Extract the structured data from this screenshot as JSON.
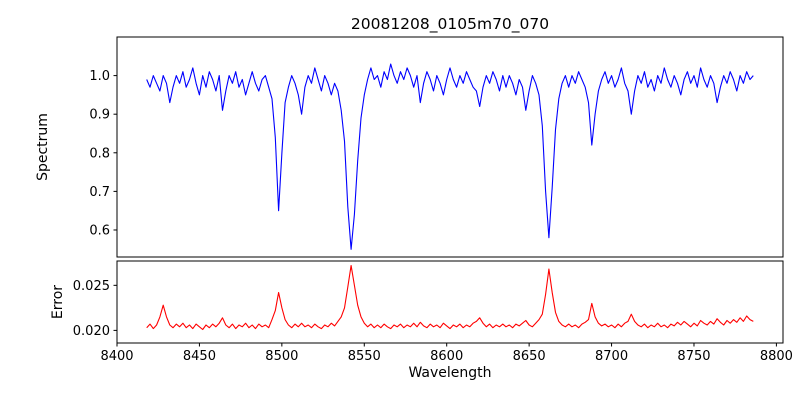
{
  "figure": {
    "title": "20081208_0105m70_070",
    "xlabel": "Wavelength",
    "ylabel_top": "Spectrum",
    "ylabel_bottom": "Error",
    "background_color": "#ffffff",
    "spectrum_color": "#0000ff",
    "error_color": "#ff0000",
    "frame_color": "#000000"
  },
  "chart_data": [
    {
      "type": "line",
      "title": "20081208_0105m70_070",
      "ylabel": "Spectrum",
      "xlim": [
        8400,
        8804
      ],
      "ylim": [
        0.53,
        1.1
      ],
      "yticks": [
        0.6,
        0.7,
        0.8,
        0.9,
        1.0
      ],
      "ytick_labels": [
        "0.6",
        "0.7",
        "0.8",
        "0.9",
        "1.0"
      ],
      "grid": false,
      "legend": "none",
      "series": [
        {
          "name": "spectrum",
          "color": "#0000ff",
          "x_start": 8418,
          "x_step": 2,
          "values": [
            0.99,
            0.97,
            1.0,
            0.98,
            0.96,
            1.0,
            0.98,
            0.93,
            0.97,
            1.0,
            0.98,
            1.01,
            0.97,
            0.99,
            1.02,
            0.98,
            0.95,
            1.0,
            0.97,
            1.01,
            0.99,
            0.96,
            1.0,
            0.91,
            0.96,
            1.0,
            0.98,
            1.01,
            0.97,
            0.99,
            0.95,
            0.98,
            1.01,
            0.98,
            0.96,
            0.99,
            1.0,
            0.97,
            0.94,
            0.84,
            0.65,
            0.8,
            0.93,
            0.97,
            1.0,
            0.98,
            0.95,
            0.9,
            0.97,
            1.0,
            0.98,
            1.02,
            0.99,
            0.96,
            1.0,
            0.98,
            0.95,
            0.98,
            0.96,
            0.91,
            0.83,
            0.66,
            0.55,
            0.64,
            0.78,
            0.89,
            0.95,
            0.99,
            1.02,
            0.99,
            1.0,
            0.97,
            1.01,
            0.99,
            1.03,
            1.0,
            0.98,
            1.01,
            0.99,
            1.02,
            1.0,
            0.97,
            1.0,
            0.93,
            0.98,
            1.01,
            0.99,
            0.96,
            1.0,
            0.98,
            0.95,
            0.99,
            1.02,
            0.99,
            0.97,
            1.0,
            0.98,
            1.01,
            0.99,
            0.97,
            0.96,
            0.92,
            0.97,
            1.0,
            0.98,
            1.01,
            0.99,
            0.96,
            1.0,
            0.97,
            1.0,
            0.98,
            0.95,
            0.99,
            0.97,
            0.91,
            0.96,
            1.0,
            0.98,
            0.95,
            0.87,
            0.7,
            0.58,
            0.71,
            0.86,
            0.94,
            0.98,
            1.0,
            0.97,
            1.0,
            0.98,
            1.01,
            0.99,
            0.97,
            0.93,
            0.82,
            0.9,
            0.96,
            0.99,
            1.01,
            0.98,
            1.0,
            0.97,
            0.99,
            1.02,
            0.98,
            0.96,
            0.9,
            0.96,
            1.0,
            0.98,
            1.01,
            0.97,
            0.99,
            0.96,
            1.0,
            0.98,
            1.02,
            0.99,
            0.97,
            1.0,
            0.98,
            0.95,
            0.99,
            1.01,
            0.98,
            1.0,
            0.97,
            1.02,
            0.99,
            0.97,
            1.0,
            0.98,
            0.93,
            0.97,
            1.0,
            0.98,
            1.01,
            0.99,
            0.96,
            1.0,
            0.98,
            1.01,
            0.99,
            1.0
          ]
        }
      ]
    },
    {
      "type": "line",
      "ylabel": "Error",
      "xlabel": "Wavelength",
      "xlim": [
        8400,
        8804
      ],
      "ylim": [
        0.0186,
        0.0277
      ],
      "yticks": [
        0.02,
        0.025
      ],
      "ytick_labels": [
        "0.020",
        "0.025"
      ],
      "xticks": [
        8400,
        8450,
        8500,
        8550,
        8600,
        8650,
        8700,
        8750,
        8800
      ],
      "grid": false,
      "legend": "none",
      "series": [
        {
          "name": "error",
          "color": "#ff0000",
          "x_start": 8418,
          "x_step": 2,
          "values": [
            0.0203,
            0.0207,
            0.0202,
            0.0206,
            0.0215,
            0.0228,
            0.0215,
            0.0206,
            0.0203,
            0.0207,
            0.0204,
            0.0208,
            0.0203,
            0.0206,
            0.0202,
            0.0207,
            0.0204,
            0.0201,
            0.0206,
            0.0203,
            0.0207,
            0.0204,
            0.0208,
            0.0214,
            0.0206,
            0.0203,
            0.0207,
            0.0202,
            0.0206,
            0.0204,
            0.0208,
            0.0203,
            0.0206,
            0.0202,
            0.0207,
            0.0204,
            0.0206,
            0.0203,
            0.0212,
            0.0222,
            0.0242,
            0.0225,
            0.0212,
            0.0206,
            0.0203,
            0.0207,
            0.0204,
            0.0208,
            0.0204,
            0.0206,
            0.0203,
            0.0207,
            0.0204,
            0.0202,
            0.0206,
            0.0204,
            0.0208,
            0.0205,
            0.021,
            0.0215,
            0.0225,
            0.0248,
            0.0272,
            0.025,
            0.0228,
            0.0215,
            0.0208,
            0.0204,
            0.0207,
            0.0203,
            0.0206,
            0.0203,
            0.0207,
            0.0204,
            0.0202,
            0.0206,
            0.0204,
            0.0207,
            0.0203,
            0.0206,
            0.0204,
            0.0208,
            0.0204,
            0.0209,
            0.0205,
            0.0203,
            0.0207,
            0.0204,
            0.0206,
            0.0203,
            0.0208,
            0.0205,
            0.0202,
            0.0206,
            0.0204,
            0.0207,
            0.0203,
            0.0206,
            0.0204,
            0.0208,
            0.021,
            0.0214,
            0.0208,
            0.0204,
            0.0207,
            0.0203,
            0.0206,
            0.0204,
            0.0207,
            0.0204,
            0.0206,
            0.0203,
            0.0207,
            0.0205,
            0.0208,
            0.0211,
            0.0206,
            0.0204,
            0.0208,
            0.0212,
            0.0218,
            0.024,
            0.0268,
            0.0242,
            0.022,
            0.021,
            0.0206,
            0.0204,
            0.0207,
            0.0204,
            0.0206,
            0.0203,
            0.0207,
            0.0209,
            0.0212,
            0.023,
            0.0215,
            0.0208,
            0.0205,
            0.0207,
            0.0204,
            0.0206,
            0.0203,
            0.0207,
            0.0204,
            0.0208,
            0.021,
            0.0218,
            0.021,
            0.0206,
            0.0204,
            0.0207,
            0.0203,
            0.0206,
            0.0204,
            0.0208,
            0.0204,
            0.0206,
            0.0203,
            0.0207,
            0.0205,
            0.0209,
            0.0206,
            0.021,
            0.0207,
            0.0204,
            0.0208,
            0.0205,
            0.0211,
            0.0208,
            0.0206,
            0.021,
            0.0207,
            0.0213,
            0.0209,
            0.0206,
            0.0211,
            0.0208,
            0.0212,
            0.0209,
            0.0214,
            0.021,
            0.0216,
            0.0212,
            0.021
          ]
        }
      ]
    }
  ]
}
